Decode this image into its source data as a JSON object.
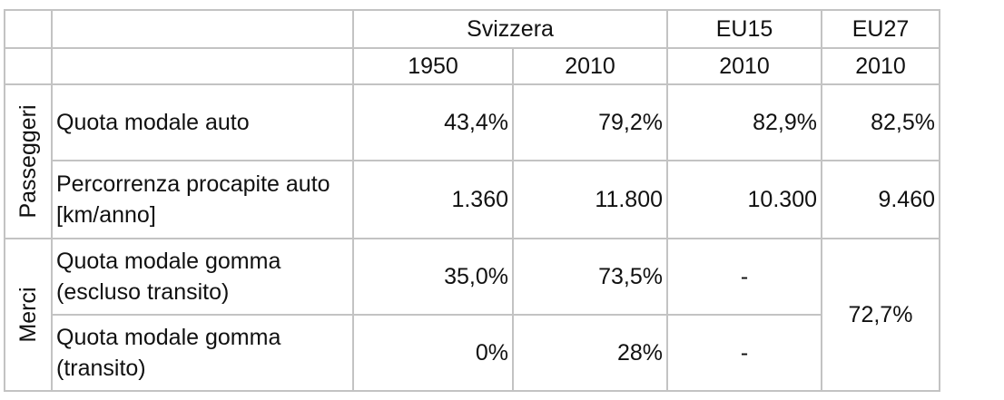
{
  "table": {
    "header_groups": {
      "svizzera": "Svizzera",
      "eu15": "EU15",
      "eu27": "EU27"
    },
    "years": [
      "1950",
      "2010",
      "2010",
      "2010"
    ],
    "groups": {
      "passeggeri": "Passeggeri",
      "merci": "Merci"
    },
    "rows": [
      {
        "label": "Quota modale auto",
        "v1950": "43,4%",
        "v2010": "79,2%",
        "eu15": "82,9%",
        "eu27": "82,5%"
      },
      {
        "label": "Percorrenza procapite auto [km/anno]",
        "v1950": "1.360",
        "v2010": "11.800",
        "eu15": "10.300",
        "eu27": "9.460"
      },
      {
        "label": "Quota modale gomma (escluso transito)",
        "v1950": "35,0%",
        "v2010": "73,5%",
        "eu15": "-"
      },
      {
        "label": "Quota modale gomma (transito)",
        "v1950": "0%",
        "v2010": "28%",
        "eu15": "-"
      }
    ],
    "eu27_merci": "72,7%"
  }
}
